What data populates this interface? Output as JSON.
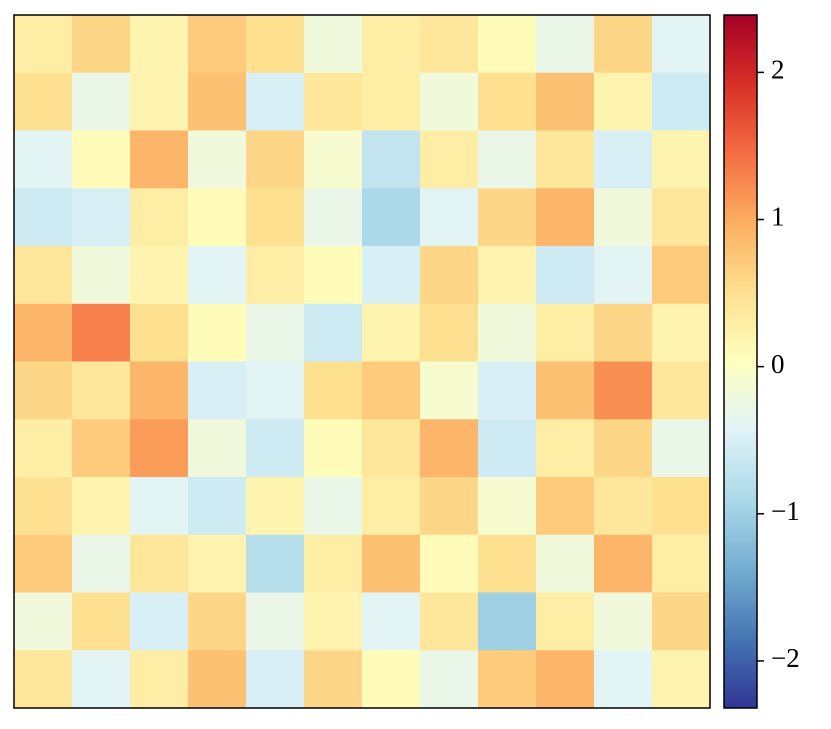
{
  "chart_data": {
    "type": "heatmap",
    "colormap": "RdYlBu_r",
    "z": [
      [
        0.3,
        0.6,
        0.2,
        0.7,
        0.5,
        -0.2,
        0.3,
        0.4,
        0.1,
        -0.3,
        0.6,
        -0.4
      ],
      [
        0.5,
        -0.3,
        0.2,
        0.8,
        -0.5,
        0.4,
        0.3,
        -0.2,
        0.5,
        0.8,
        0.2,
        -0.6
      ],
      [
        -0.4,
        0.1,
        0.9,
        -0.2,
        0.6,
        -0.1,
        -0.7,
        0.3,
        -0.3,
        0.4,
        -0.5,
        0.2
      ],
      [
        -0.6,
        -0.5,
        0.3,
        0.1,
        0.5,
        -0.3,
        -0.9,
        -0.4,
        0.6,
        0.9,
        -0.2,
        0.4
      ],
      [
        0.4,
        -0.2,
        0.2,
        -0.4,
        0.3,
        0.1,
        -0.5,
        0.6,
        0.2,
        -0.6,
        -0.4,
        0.7
      ],
      [
        0.9,
        1.3,
        0.5,
        0.1,
        -0.3,
        -0.6,
        0.2,
        0.5,
        -0.2,
        0.3,
        0.6,
        0.2
      ],
      [
        0.6,
        0.4,
        0.9,
        -0.5,
        -0.4,
        0.5,
        0.7,
        -0.1,
        -0.5,
        0.8,
        1.2,
        0.4
      ],
      [
        0.3,
        0.7,
        1.1,
        -0.2,
        -0.6,
        0.1,
        0.4,
        0.9,
        -0.6,
        0.3,
        0.6,
        -0.3
      ],
      [
        0.5,
        0.2,
        -0.4,
        -0.6,
        0.2,
        -0.3,
        0.3,
        0.6,
        -0.1,
        0.7,
        0.4,
        0.5
      ],
      [
        0.7,
        -0.3,
        0.4,
        0.2,
        -0.8,
        0.3,
        0.8,
        0.1,
        0.5,
        -0.2,
        0.9,
        0.3
      ],
      [
        -0.2,
        0.5,
        -0.5,
        0.6,
        -0.3,
        0.2,
        -0.4,
        0.4,
        -1.0,
        0.3,
        -0.2,
        0.6
      ],
      [
        0.4,
        -0.4,
        0.3,
        0.8,
        -0.5,
        0.6,
        0.1,
        -0.3,
        0.7,
        0.9,
        -0.4,
        0.2
      ]
    ],
    "clim": [
      -2.32,
      2.39
    ],
    "cticks": [
      {
        "value": -2,
        "label": "−2"
      },
      {
        "value": -1,
        "label": "−1"
      },
      0,
      1,
      2
    ]
  }
}
